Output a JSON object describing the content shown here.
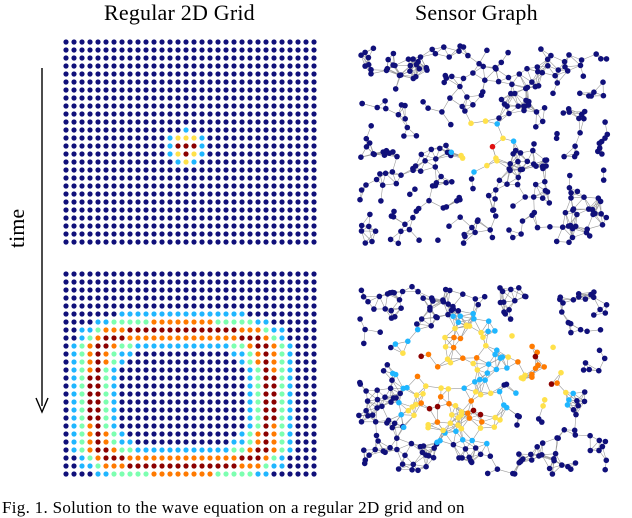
{
  "figure": {
    "column_titles": [
      "Regular 2D Grid",
      "Sensor Graph"
    ],
    "time_axis_label": "time",
    "caption": "Fig. 1.   Solution to the wave equation on a regular 2D grid and on"
  },
  "colors": {
    "background_node": "#10107a",
    "edge": "#9a9a9a",
    "colormap": [
      "#10107a",
      "#1f3cff",
      "#1fb6ff",
      "#7cffb0",
      "#ffe14a",
      "#ff7a00",
      "#e01010",
      "#8b0000"
    ]
  },
  "panels": [
    {
      "id": "grid-t1",
      "type": "regular-grid",
      "wave": "small-source-pulse"
    },
    {
      "id": "graph-t1",
      "type": "sensor-graph",
      "wave": "small-source-pulse"
    },
    {
      "id": "grid-t2",
      "type": "regular-grid",
      "wave": "expanding-ring"
    },
    {
      "id": "graph-t2",
      "type": "sensor-graph",
      "wave": "scattered-wavefront"
    }
  ]
}
